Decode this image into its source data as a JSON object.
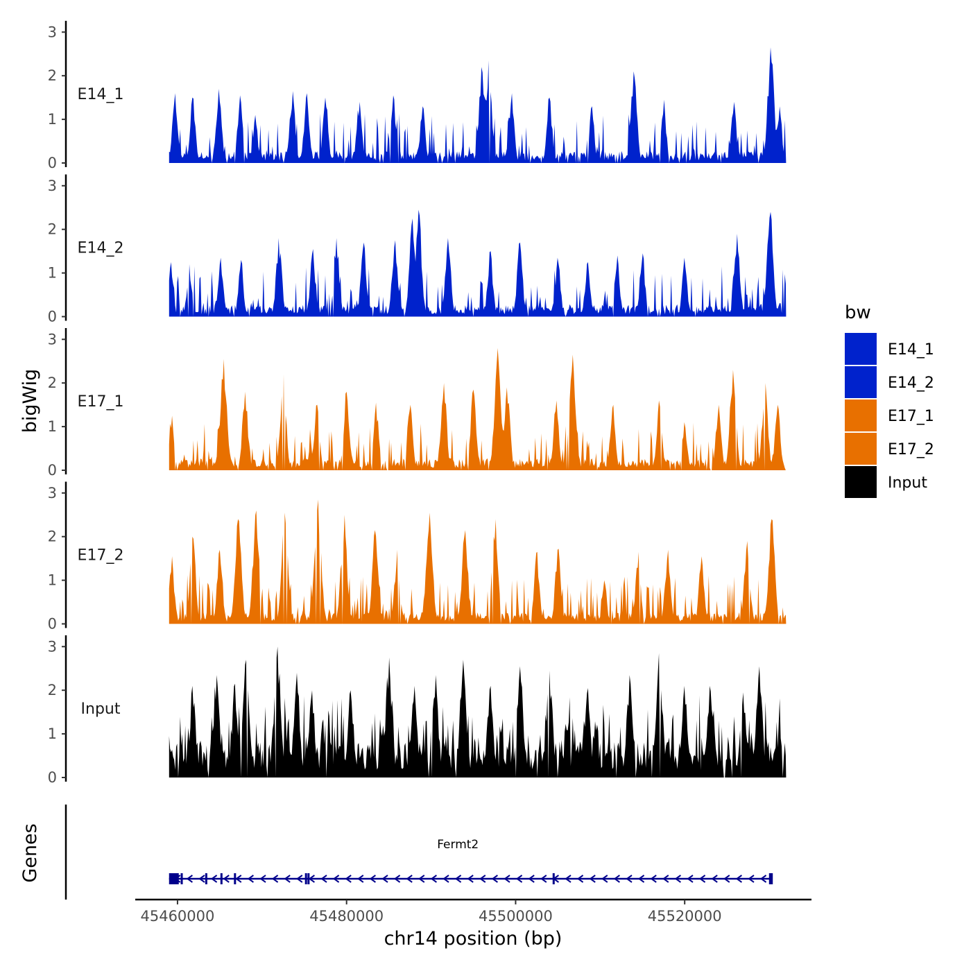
{
  "chart_data": {
    "type": "area",
    "title": "",
    "xlabel": "chr14 position (bp)",
    "ylabel": "bigWig",
    "genes_label": "Genes",
    "xlim": [
      45455000,
      45535000
    ],
    "ylim": [
      0,
      3.1
    ],
    "x_ticks": [
      45460000,
      45480000,
      45500000,
      45520000
    ],
    "x_tick_labels": [
      "45460000",
      "45480000",
      "45500000",
      "45520000"
    ],
    "y_ticks": [
      0,
      1,
      2,
      3
    ],
    "y_tick_labels": [
      "0",
      "1",
      "2",
      "3"
    ],
    "signal_range": [
      45459000,
      45532000
    ],
    "series": [
      {
        "name": "E14_1",
        "color": "#0022CC",
        "peaks": [
          [
            45459700,
            1.6
          ],
          [
            45461800,
            1.5
          ],
          [
            45464900,
            1.7
          ],
          [
            45467400,
            1.55
          ],
          [
            45469200,
            1.1
          ],
          [
            45473600,
            1.65
          ],
          [
            45475300,
            1.6
          ],
          [
            45477500,
            1.5
          ],
          [
            45481500,
            1.4
          ],
          [
            45485500,
            1.55
          ],
          [
            45489000,
            1.3
          ],
          [
            45496000,
            2.2
          ],
          [
            45496800,
            2.35
          ],
          [
            45499500,
            1.6
          ],
          [
            45504000,
            1.5
          ],
          [
            45509000,
            1.3
          ],
          [
            45514000,
            2.1
          ],
          [
            45517500,
            1.45
          ],
          [
            45525800,
            1.4
          ],
          [
            45530200,
            2.65
          ],
          [
            45531200,
            1.3
          ]
        ]
      },
      {
        "name": "E14_2",
        "color": "#0022CC",
        "peaks": [
          [
            45459200,
            1.25
          ],
          [
            45461400,
            1.2
          ],
          [
            45465100,
            1.35
          ],
          [
            45467500,
            1.3
          ],
          [
            45472000,
            1.8
          ],
          [
            45476000,
            1.55
          ],
          [
            45478800,
            1.8
          ],
          [
            45482000,
            1.7
          ],
          [
            45485700,
            1.75
          ],
          [
            45487800,
            2.25
          ],
          [
            45488500,
            2.45
          ],
          [
            45492000,
            1.8
          ],
          [
            45497000,
            1.5
          ],
          [
            45500500,
            1.7
          ],
          [
            45505000,
            1.35
          ],
          [
            45508500,
            1.25
          ],
          [
            45512000,
            1.4
          ],
          [
            45515000,
            1.45
          ],
          [
            45520000,
            1.35
          ],
          [
            45526200,
            1.9
          ],
          [
            45530100,
            2.4
          ]
        ]
      },
      {
        "name": "E17_1",
        "color": "#E87000",
        "peaks": [
          [
            45459300,
            1.25
          ],
          [
            45465500,
            2.55
          ],
          [
            45468000,
            1.8
          ],
          [
            45472500,
            2.2
          ],
          [
            45476500,
            1.5
          ],
          [
            45480000,
            1.8
          ],
          [
            45483500,
            1.55
          ],
          [
            45487500,
            1.5
          ],
          [
            45491500,
            2.0
          ],
          [
            45495000,
            1.85
          ],
          [
            45497900,
            2.8
          ],
          [
            45499000,
            1.9
          ],
          [
            45504800,
            1.6
          ],
          [
            45506700,
            2.65
          ],
          [
            45511500,
            1.5
          ],
          [
            45517000,
            1.6
          ],
          [
            45520000,
            1.1
          ],
          [
            45524000,
            1.5
          ],
          [
            45525700,
            2.3
          ],
          [
            45529500,
            2.0
          ],
          [
            45531000,
            1.5
          ]
        ]
      },
      {
        "name": "E17_2",
        "color": "#E87000",
        "peaks": [
          [
            45459300,
            1.55
          ],
          [
            45461800,
            2.0
          ],
          [
            45465000,
            1.7
          ],
          [
            45467200,
            2.4
          ],
          [
            45469300,
            2.6
          ],
          [
            45472700,
            2.55
          ],
          [
            45476600,
            2.85
          ],
          [
            45479700,
            2.5
          ],
          [
            45483400,
            2.15
          ],
          [
            45486000,
            1.7
          ],
          [
            45489800,
            2.55
          ],
          [
            45494000,
            2.15
          ],
          [
            45497600,
            2.4
          ],
          [
            45502500,
            1.65
          ],
          [
            45505000,
            1.7
          ],
          [
            45510500,
            1.0
          ],
          [
            45514500,
            1.65
          ],
          [
            45518000,
            1.7
          ],
          [
            45522000,
            1.55
          ],
          [
            45527400,
            1.9
          ],
          [
            45530300,
            2.4
          ]
        ]
      },
      {
        "name": "Input",
        "color": "#000000",
        "peaks": [
          [
            45459000,
            0.95
          ],
          [
            45461800,
            2.1
          ],
          [
            45464600,
            2.35
          ],
          [
            45466800,
            2.15
          ],
          [
            45468100,
            2.7
          ],
          [
            45471800,
            3.0
          ],
          [
            45474100,
            2.4
          ],
          [
            45475900,
            2.0
          ],
          [
            45480500,
            2.0
          ],
          [
            45485000,
            2.75
          ],
          [
            45488000,
            2.1
          ],
          [
            45490500,
            2.35
          ],
          [
            45493800,
            2.7
          ],
          [
            45497000,
            2.1
          ],
          [
            45500500,
            2.55
          ],
          [
            45504000,
            2.45
          ],
          [
            45508500,
            2.05
          ],
          [
            45513500,
            2.35
          ],
          [
            45517000,
            2.85
          ],
          [
            45520000,
            2.1
          ],
          [
            45523000,
            2.1
          ],
          [
            45526900,
            1.95
          ],
          [
            45528800,
            2.55
          ],
          [
            45531400,
            0.9
          ]
        ]
      }
    ],
    "legend": {
      "title": "bw",
      "position": "right",
      "items": [
        {
          "label": "E14_1",
          "color": "#0022CC"
        },
        {
          "label": "E14_2",
          "color": "#0022CC"
        },
        {
          "label": "E17_1",
          "color": "#E87000"
        },
        {
          "label": "E17_2",
          "color": "#E87000"
        },
        {
          "label": "Input",
          "color": "#000000"
        }
      ]
    },
    "genes": [
      {
        "name": "Fermt2",
        "start": 45459000,
        "end": 45530300,
        "strand": "-",
        "color": "#00008B"
      }
    ]
  }
}
